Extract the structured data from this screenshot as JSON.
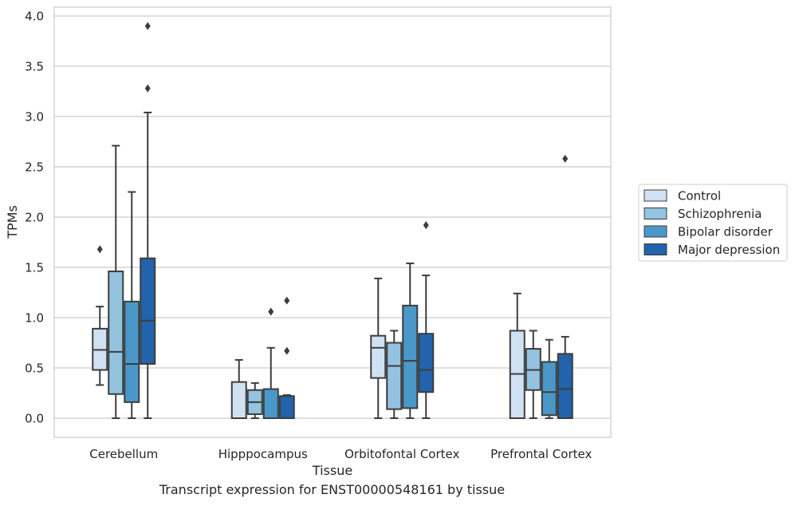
{
  "chart_data": {
    "type": "boxplot",
    "xlabel": "Tissue",
    "ylabel": "TPMs",
    "ylim": [
      -0.19,
      4.09
    ],
    "yticks": [
      0.0,
      0.5,
      1.0,
      1.5,
      2.0,
      2.5,
      3.0,
      3.5,
      4.0
    ],
    "ytick_labels": [
      "0.0",
      "0.5",
      "1.0",
      "1.5",
      "2.0",
      "2.5",
      "3.0",
      "3.5",
      "4.0"
    ],
    "categories": [
      "Cerebellum",
      "Hipppocampus",
      "Orbitofontal Cortex",
      "Prefrontal Cortex"
    ],
    "grid": "horizontal",
    "legend_position": "outside right",
    "series": [
      {
        "name": "Control",
        "color": "#cfe1f2",
        "boxes": [
          {
            "whislo": 0.33,
            "q1": 0.48,
            "med": 0.68,
            "q3": 0.89,
            "whishi": 1.11,
            "fliers": [
              1.68
            ]
          },
          {
            "whislo": 0.0,
            "q1": 0.0,
            "med": 0.0,
            "q3": 0.36,
            "whishi": 0.58,
            "fliers": []
          },
          {
            "whislo": 0.0,
            "q1": 0.4,
            "med": 0.7,
            "q3": 0.82,
            "whishi": 1.39,
            "fliers": []
          },
          {
            "whislo": 0.0,
            "q1": 0.0,
            "med": 0.44,
            "q3": 0.87,
            "whishi": 1.24,
            "fliers": []
          }
        ]
      },
      {
        "name": "Schizophrenia",
        "color": "#93c3df",
        "boxes": [
          {
            "whislo": 0.0,
            "q1": 0.24,
            "med": 0.66,
            "q3": 1.46,
            "whishi": 2.71,
            "fliers": []
          },
          {
            "whislo": 0.0,
            "q1": 0.04,
            "med": 0.16,
            "q3": 0.28,
            "whishi": 0.35,
            "fliers": []
          },
          {
            "whislo": 0.0,
            "q1": 0.09,
            "med": 0.52,
            "q3": 0.75,
            "whishi": 0.87,
            "fliers": []
          },
          {
            "whislo": 0.0,
            "q1": 0.28,
            "med": 0.48,
            "q3": 0.69,
            "whishi": 0.87,
            "fliers": []
          }
        ]
      },
      {
        "name": "Bipolar disorder",
        "color": "#4a98c9",
        "boxes": [
          {
            "whislo": 0.0,
            "q1": 0.16,
            "med": 0.54,
            "q3": 1.16,
            "whishi": 2.25,
            "fliers": []
          },
          {
            "whislo": 0.0,
            "q1": 0.0,
            "med": 0.0,
            "q3": 0.29,
            "whishi": 0.7,
            "fliers": [
              1.06
            ]
          },
          {
            "whislo": 0.0,
            "q1": 0.1,
            "med": 0.57,
            "q3": 1.12,
            "whishi": 1.54,
            "fliers": []
          },
          {
            "whislo": 0.0,
            "q1": 0.03,
            "med": 0.26,
            "q3": 0.56,
            "whishi": 0.78,
            "fliers": []
          }
        ]
      },
      {
        "name": "Major depression",
        "color": "#2164ab",
        "boxes": [
          {
            "whislo": 0.0,
            "q1": 0.54,
            "med": 0.97,
            "q3": 1.59,
            "whishi": 3.04,
            "fliers": [
              3.28,
              3.9
            ]
          },
          {
            "whislo": 0.0,
            "q1": 0.0,
            "med": 0.0,
            "q3": 0.22,
            "whishi": 0.23,
            "fliers": [
              0.67,
              1.17
            ]
          },
          {
            "whislo": 0.0,
            "q1": 0.26,
            "med": 0.48,
            "q3": 0.84,
            "whishi": 1.42,
            "fliers": [
              1.92
            ]
          },
          {
            "whislo": 0.0,
            "q1": 0.0,
            "med": 0.29,
            "q3": 0.64,
            "whishi": 0.81,
            "fliers": [
              2.58
            ]
          }
        ]
      }
    ]
  },
  "caption": "Transcript expression for ENST00000548161 by tissue"
}
